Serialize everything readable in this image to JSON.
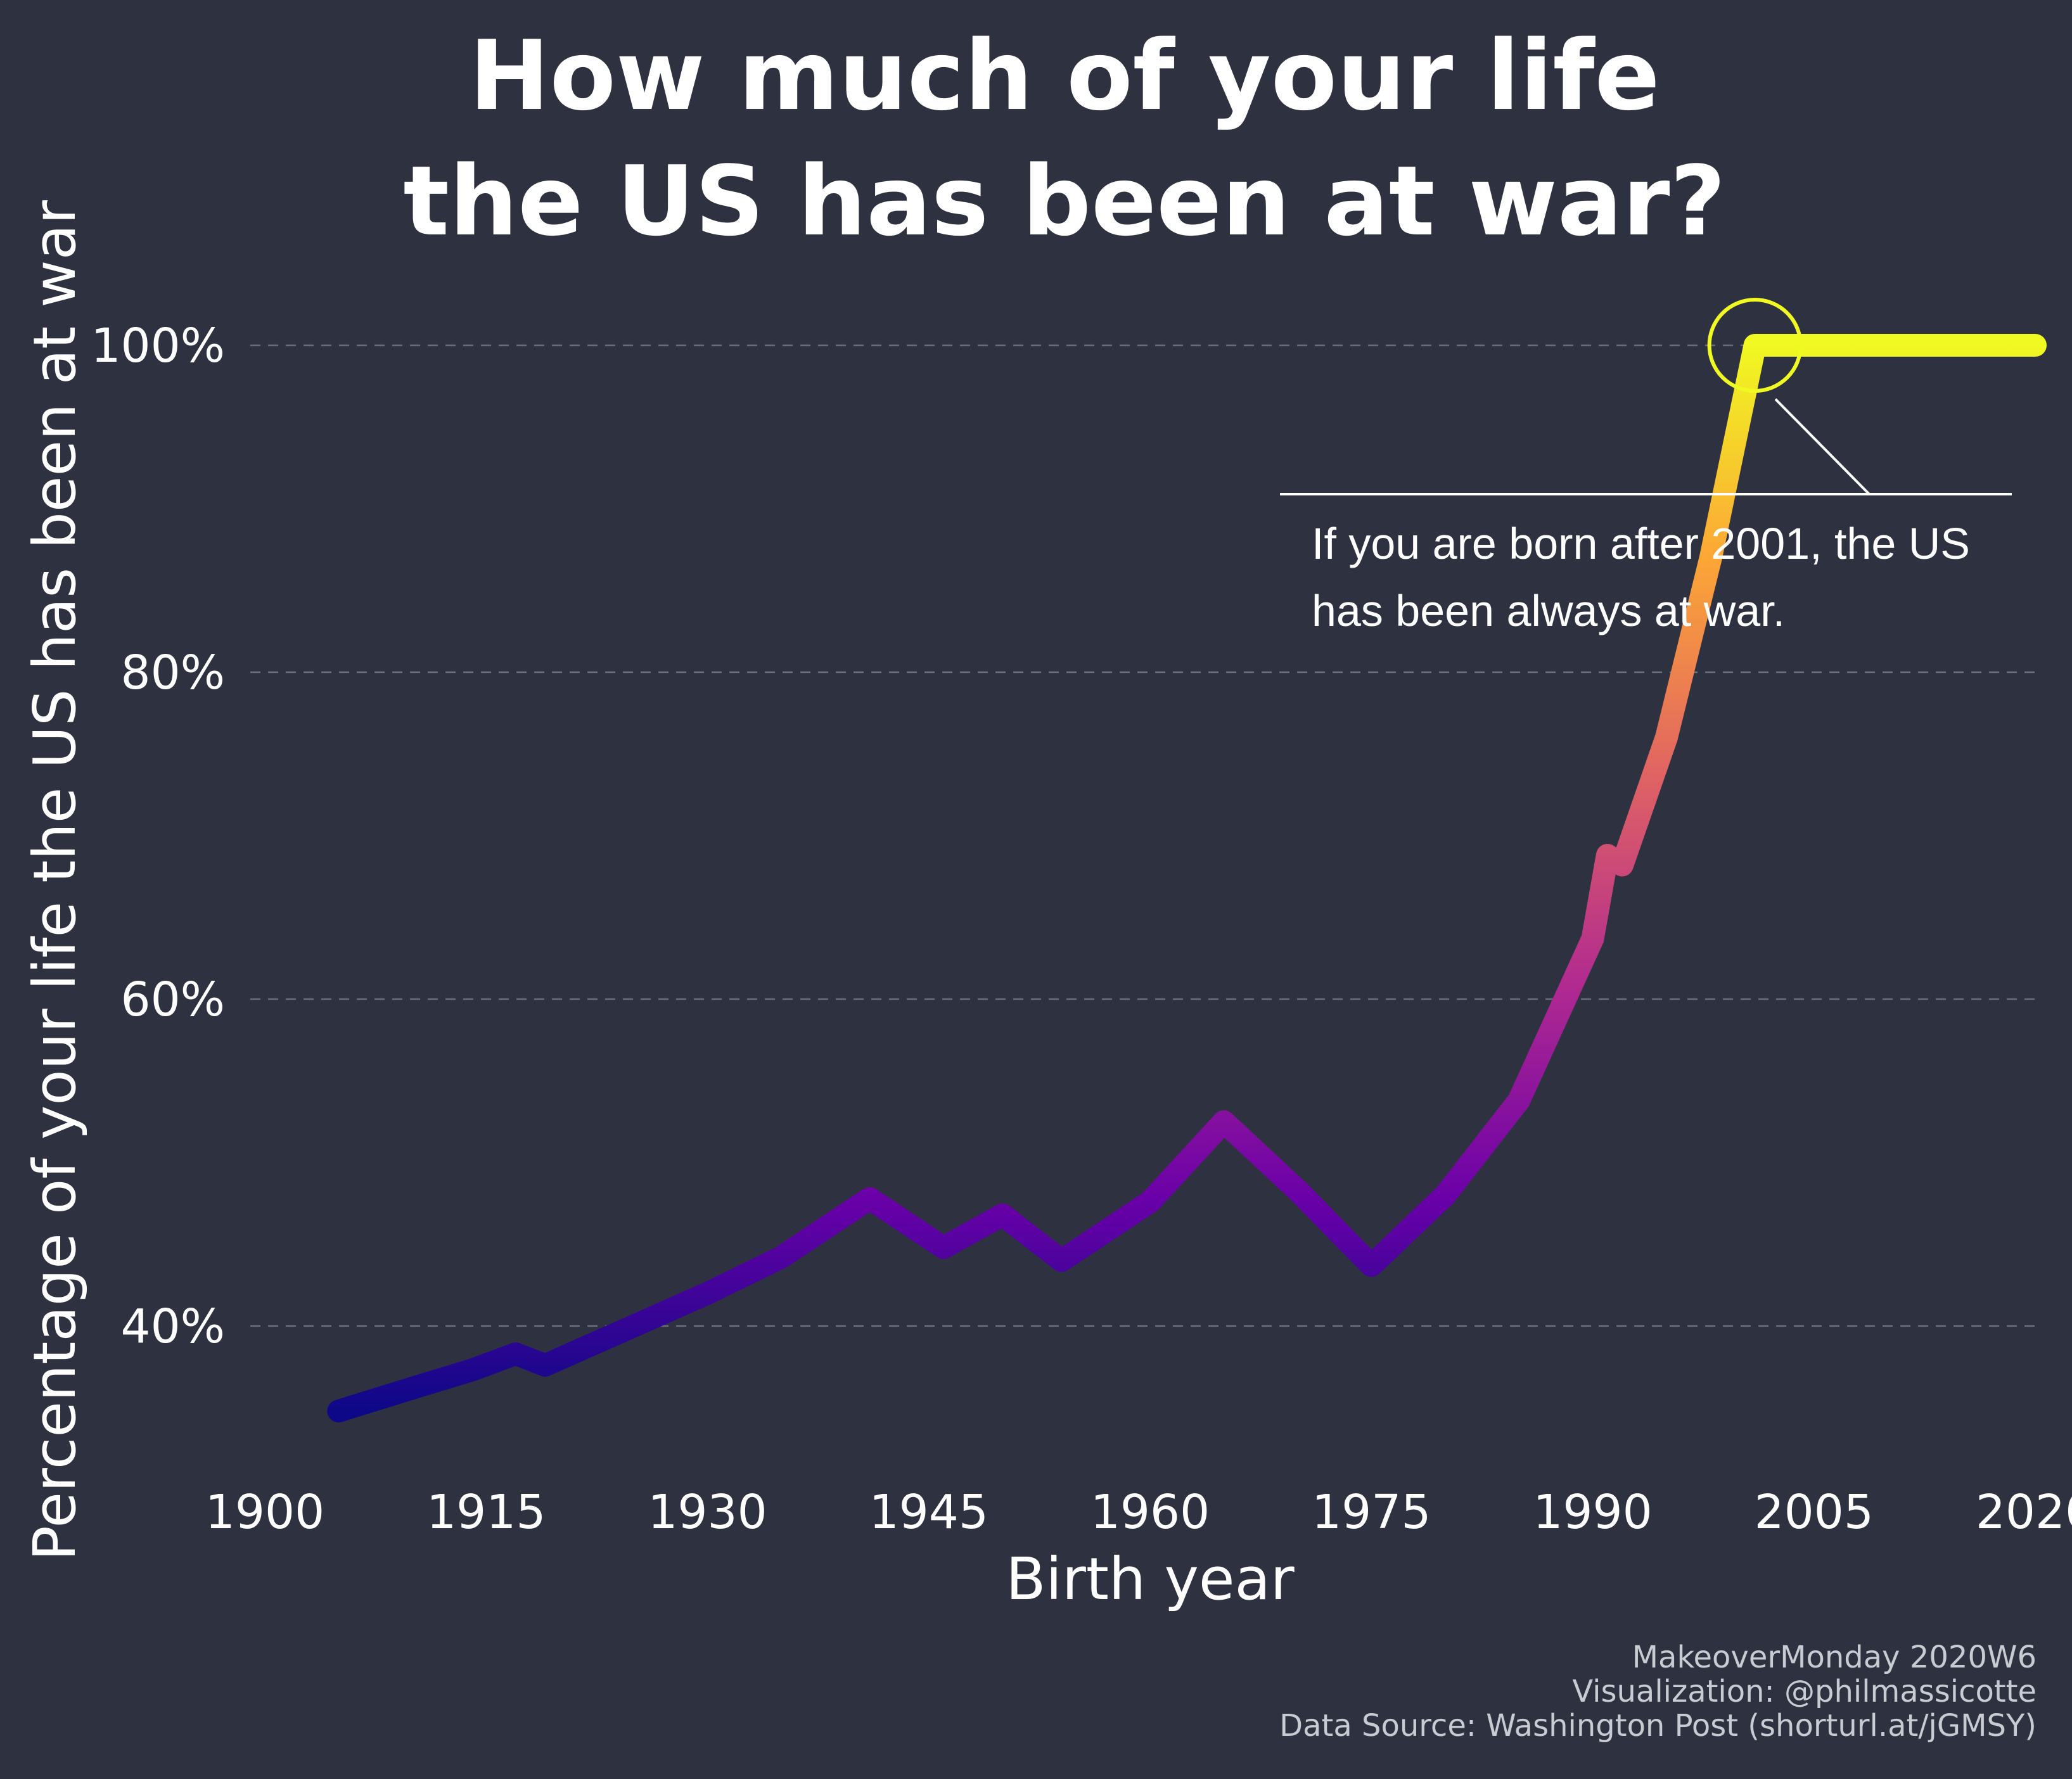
{
  "title": {
    "line1": "How much of your life",
    "line2": "the US has been at war?"
  },
  "caption": {
    "line1": "MakeoverMonday 2020W6",
    "line2": "Visualization: @philmassicotte",
    "line3": "Data Source: Washington Post (shorturl.at/jGMSY)"
  },
  "annotation": {
    "line1": "If you are born after 2001, the US",
    "line2": "has been always at war.",
    "highlight_year": 2001,
    "highlight_color": "#f0f921"
  },
  "chart_data": {
    "type": "line",
    "title": "How much of your life the US has been at war?",
    "xlabel": "Birth year",
    "ylabel": "Percentage of your life the US has been at war",
    "xlim": [
      1900,
      2020
    ],
    "ylim": [
      33,
      100
    ],
    "x_ticks": [
      1900,
      1915,
      1930,
      1945,
      1960,
      1975,
      1990,
      2005,
      2020
    ],
    "x_tick_labels": [
      "1900",
      "1915",
      "1930",
      "1945",
      "1960",
      "1975",
      "1990",
      "2005",
      "2020"
    ],
    "y_ticks": [
      40,
      60,
      80,
      100
    ],
    "y_tick_labels": [
      "40%",
      "60%",
      "80%",
      "100%"
    ],
    "grid": "horizontal dashed",
    "color_scale": [
      "#0d0887",
      "#6a00a8",
      "#b12a90",
      "#e16462",
      "#fca636",
      "#f0f921"
    ],
    "series": [
      {
        "x": [
          1905,
          1910,
          1914,
          1917,
          1919,
          1925,
          1930,
          1935,
          1941,
          1946,
          1950,
          1954,
          1960,
          1965,
          1970,
          1975,
          1980,
          1985,
          1990,
          1991,
          1992,
          1995,
          1998,
          2001,
          2005,
          2010,
          2015,
          2020
        ],
        "y": [
          34.8,
          36.2,
          37.3,
          38.3,
          37.6,
          40.0,
          42.0,
          44.2,
          47.8,
          44.8,
          46.8,
          44.0,
          47.6,
          52.5,
          48.3,
          43.7,
          48.0,
          53.8,
          63.7,
          68.8,
          68.2,
          76.0,
          87.0,
          100.0,
          100.0,
          100.0,
          100.0,
          100.0
        ]
      }
    ]
  }
}
